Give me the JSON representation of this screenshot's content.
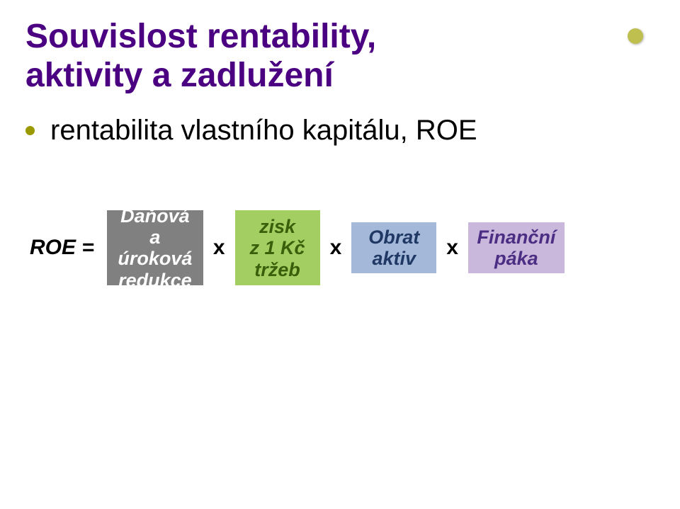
{
  "title_line1": "Souvislost rentability,",
  "title_line2": "aktivity a zadlužení",
  "bullet_text": "rentabilita vlastního kapitálu, ROE",
  "formula": {
    "lhs": "ROE =",
    "op": "x",
    "box1": {
      "l1": "Daňová a",
      "l2": "úroková",
      "l3": "redukce"
    },
    "box2": {
      "l1": "zisk",
      "l2": "z 1 Kč",
      "l3": "tržeb"
    },
    "box3": {
      "l1": "Obrat",
      "l2": "aktiv"
    },
    "box4": {
      "l1": "Finanční",
      "l2": "páka"
    }
  },
  "colors": {
    "title": "#4b0082",
    "bullet_dot": "#9a9a00",
    "corner_dot": "#bfbf4f",
    "box_gray_bg": "#808080",
    "box_gray_fg": "#ffffff",
    "box_green_bg": "#a3cf62",
    "box_green_fg": "#3a5f0b",
    "box_blue_bg": "#a4b8d9",
    "box_blue_fg": "#1f3864",
    "box_purple_bg": "#cab7dc",
    "box_purple_fg": "#4b2e83"
  }
}
